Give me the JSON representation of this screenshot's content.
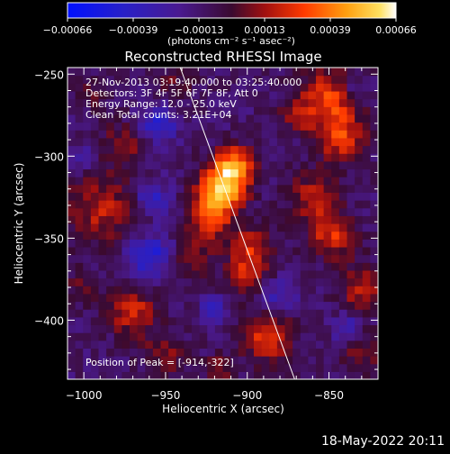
{
  "chart_data": {
    "type": "heatmap",
    "title": "Reconstructed RHESSI Image",
    "xlabel": "Heliocentric X (arcsec)",
    "ylabel": "Heliocentric Y (arcsec)",
    "xlim": [
      -1010,
      -820
    ],
    "ylim": [
      -436,
      -246
    ],
    "x_ticks": [
      -1000,
      -950,
      -900,
      -850
    ],
    "y_ticks": [
      -400,
      -350,
      -300,
      -250
    ],
    "colorbar": {
      "min": -0.00066,
      "max": 0.00066,
      "tick_labels": [
        "-0.00066",
        "-0.00039",
        "-0.00013",
        "0.00013",
        "0.00039",
        "0.00066"
      ],
      "unit_label": "(photons cm⁻² s⁻¹ asec⁻²)"
    },
    "annotations": [
      "27-Nov-2013 03:19:40.000 to 03:25:40.000",
      "Detectors: 3F 4F 5F 6F 7F 8F, Att 0",
      "Energy Range: 12.0 - 25.0 keV",
      "Clean     Total counts: 3.21E+04"
    ],
    "peak_label": "Position of Peak = [-914,-322]",
    "peak": {
      "x": -914,
      "y": -322
    },
    "limb_line": [
      {
        "x": -941,
        "y": -246
      },
      {
        "x": -871,
        "y": -436
      }
    ],
    "sources": [
      {
        "x": -916,
        "y": -320,
        "r": 14,
        "v": 0.00066
      },
      {
        "x": -908,
        "y": -305,
        "r": 12,
        "v": 0.00046
      },
      {
        "x": -924,
        "y": -338,
        "r": 12,
        "v": 0.0004
      },
      {
        "x": -898,
        "y": -356,
        "r": 14,
        "v": 0.00034
      },
      {
        "x": -902,
        "y": -374,
        "r": 11,
        "v": 0.00022
      },
      {
        "x": -990,
        "y": -332,
        "r": 22,
        "v": 0.00028
      },
      {
        "x": -975,
        "y": -292,
        "r": 14,
        "v": 0.0002
      },
      {
        "x": -970,
        "y": -395,
        "r": 14,
        "v": 0.00034
      },
      {
        "x": -950,
        "y": -420,
        "r": 13,
        "v": 0.00022
      },
      {
        "x": -888,
        "y": -410,
        "r": 16,
        "v": 0.00034
      },
      {
        "x": -932,
        "y": -362,
        "r": 12,
        "v": 0.0002
      },
      {
        "x": -850,
        "y": -265,
        "r": 18,
        "v": 0.0004
      },
      {
        "x": -842,
        "y": -290,
        "r": 14,
        "v": 0.00034
      },
      {
        "x": -860,
        "y": -325,
        "r": 15,
        "v": 0.00028
      },
      {
        "x": -848,
        "y": -348,
        "r": 14,
        "v": 0.00034
      },
      {
        "x": -830,
        "y": -380,
        "r": 14,
        "v": 0.00028
      },
      {
        "x": -830,
        "y": -420,
        "r": 12,
        "v": 0.0002
      },
      {
        "x": -870,
        "y": -275,
        "r": 10,
        "v": 0.0002
      },
      {
        "x": -945,
        "y": -255,
        "r": 12,
        "v": 0.00016
      },
      {
        "x": -995,
        "y": -260,
        "r": 12,
        "v": 0.00012
      },
      {
        "x": -1002,
        "y": -380,
        "r": 10,
        "v": 0.00016
      },
      {
        "x": -918,
        "y": -430,
        "r": 9,
        "v": 0.0002
      },
      {
        "x": -958,
        "y": -325,
        "r": 10,
        "v": -0.0003
      },
      {
        "x": -960,
        "y": -360,
        "r": 13,
        "v": -0.00036
      },
      {
        "x": -955,
        "y": -280,
        "r": 12,
        "v": -0.0003
      },
      {
        "x": -880,
        "y": -385,
        "r": 10,
        "v": -0.00022
      },
      {
        "x": -1000,
        "y": -300,
        "r": 8,
        "v": -0.00022
      },
      {
        "x": -835,
        "y": -260,
        "r": 8,
        "v": -0.0002
      },
      {
        "x": -840,
        "y": -405,
        "r": 8,
        "v": -0.00026
      },
      {
        "x": -920,
        "y": -395,
        "r": 9,
        "v": -0.00026
      }
    ]
  },
  "footer": {
    "timestamp": "18-May-2022 20:11"
  }
}
